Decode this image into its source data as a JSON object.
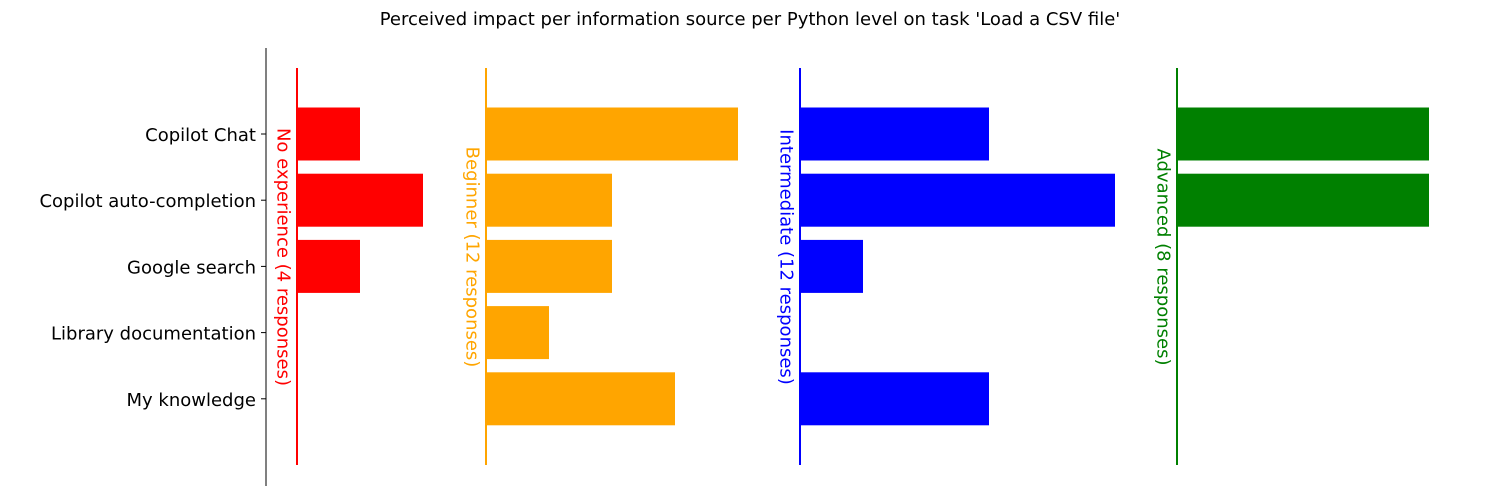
{
  "chart_data": {
    "type": "bar",
    "title": "Perceived impact per information source per Python level on task 'Load a CSV file'",
    "categories": [
      "Copilot Chat",
      "Copilot auto-completion",
      "Google search",
      "Library documentation",
      "My knowledge"
    ],
    "series": [
      {
        "name": "No experience (4 responses)",
        "color": "#ff0000",
        "values": [
          1,
          2,
          1,
          0,
          0
        ]
      },
      {
        "name": "Beginner (12 responses)",
        "color": "#ffa500",
        "values": [
          4,
          2,
          2,
          1,
          3
        ]
      },
      {
        "name": "Intermediate (12 responses)",
        "color": "#0000ff",
        "values": [
          3,
          5,
          1,
          0,
          3
        ]
      },
      {
        "name": "Advanced (8 responses)",
        "color": "#008000",
        "values": [
          4,
          4,
          0,
          0,
          0
        ]
      }
    ]
  }
}
